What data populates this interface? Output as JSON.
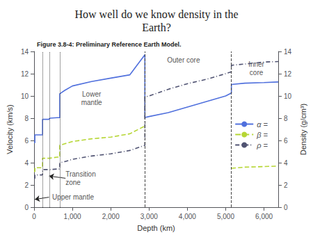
{
  "chart_data": {
    "type": "line",
    "title": "How well do we know density in the\nEarth?",
    "subtitle": "Figure 3.8-4: Preliminary Reference Earth Model.",
    "xlabel": "Depth (km)",
    "ylabel": "Velocity (km/s)",
    "y2label": "Density (g/cm³)",
    "xlim": [
      0,
      6371
    ],
    "xticks": [
      0,
      1000,
      2000,
      3000,
      4000,
      5000,
      6000
    ],
    "ylim": [
      0,
      14
    ],
    "yticks": [
      0,
      2,
      4,
      6,
      8,
      10,
      12,
      14
    ],
    "y2lim": [
      0,
      14
    ],
    "y2ticks": [
      0,
      2,
      4,
      6,
      8,
      10,
      12,
      14
    ],
    "grid": false,
    "legend": "right",
    "series": [
      {
        "name": "α =",
        "line_style": "solid",
        "x": [
          0,
          20,
          20,
          220,
          220,
          400,
          400,
          600,
          600,
          670,
          670,
          800,
          1000,
          1500,
          2000,
          2500,
          2891,
          2891,
          3000,
          3500,
          4000,
          4500,
          5000,
          5149,
          5149,
          5500,
          6000,
          6371
        ],
        "values": [
          5.8,
          5.8,
          6.5,
          6.5,
          7.9,
          7.9,
          8.0,
          8.05,
          8.05,
          8.05,
          10.2,
          10.5,
          10.9,
          11.3,
          11.6,
          11.9,
          13.7,
          8.06,
          8.15,
          8.5,
          9.0,
          9.5,
          10.0,
          10.27,
          11.03,
          11.15,
          11.2,
          11.26
        ]
      },
      {
        "name": "β =",
        "line_style": "dashed",
        "x": [
          0,
          20,
          20,
          220,
          220,
          400,
          400,
          600,
          600,
          670,
          670,
          800,
          1000,
          1500,
          2000,
          2500,
          2891
        ],
        "values": [
          3.2,
          3.2,
          3.55,
          3.55,
          4.4,
          4.4,
          4.4,
          4.5,
          4.5,
          4.5,
          5.57,
          5.7,
          5.9,
          6.15,
          6.3,
          6.6,
          7.3
        ]
      },
      {
        "name": "β =",
        "line_style": "dashed",
        "x": [
          5149,
          5500,
          6000,
          6371
        ],
        "values": [
          3.5,
          3.6,
          3.65,
          3.7
        ]
      },
      {
        "name": "ρ =",
        "line_style": "dashdot",
        "axis": "y2",
        "x": [
          0,
          20,
          20,
          220,
          220,
          400,
          400,
          600,
          600,
          670,
          670,
          800,
          1000,
          1500,
          2000,
          2500,
          2891,
          2891,
          3000,
          3500,
          4000,
          4500,
          5000,
          5149,
          5149,
          5500,
          6000,
          6371
        ],
        "values": [
          2.6,
          2.6,
          2.9,
          2.9,
          3.38,
          3.38,
          3.37,
          3.43,
          3.43,
          3.43,
          3.99,
          4.1,
          4.3,
          4.6,
          4.8,
          5.1,
          5.57,
          9.9,
          10.0,
          10.6,
          11.1,
          11.5,
          12.0,
          12.17,
          12.76,
          12.87,
          13.05,
          13.09
        ]
      }
    ],
    "vlines": [
      {
        "x": 220,
        "line_style": "dotted"
      },
      {
        "x": 400,
        "line_style": "dotted"
      },
      {
        "x": 670,
        "line_style": "dotted"
      },
      {
        "x": 2891,
        "line_style": "dashed"
      },
      {
        "x": 5149,
        "line_style": "dashed"
      }
    ],
    "annotations": [
      {
        "text": "Lower\nmantle",
        "x": 1500,
        "y": 9.8,
        "align": "center"
      },
      {
        "text": "Outer core",
        "x": 3900,
        "y": 13.2,
        "align": "center"
      },
      {
        "text": "Inner\ncore",
        "x": 5800,
        "y": 12.5,
        "align": "center"
      },
      {
        "text": "Transition\nzone",
        "x": 820,
        "y": 2.6,
        "align": "left"
      },
      {
        "text": "Upper mantle",
        "x": 470,
        "y": 0.9,
        "align": "left"
      }
    ],
    "arrows": [
      {
        "from": [
          820,
          2.6
        ],
        "to": [
          390,
          2.8
        ]
      },
      {
        "from": [
          390,
          0.9
        ],
        "to": [
          20,
          0.7
        ]
      }
    ]
  }
}
